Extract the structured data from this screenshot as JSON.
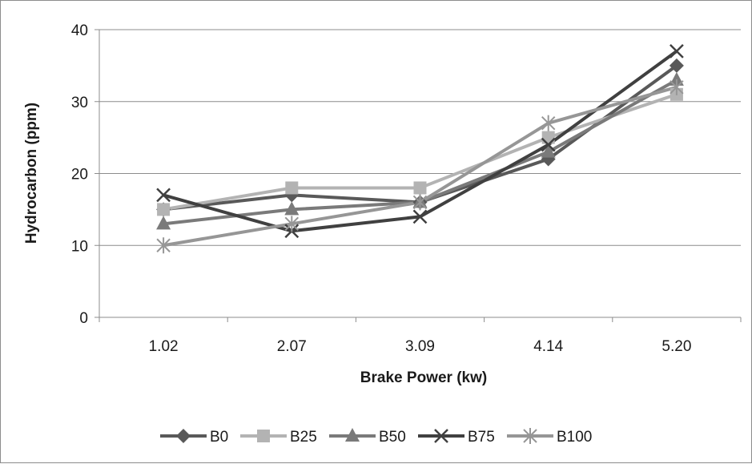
{
  "chart_data": {
    "type": "line",
    "title": "",
    "xlabel": "Brake Power (kw)",
    "ylabel": "Hydrocarbon (ppm)",
    "categories": [
      "1.02",
      "2.07",
      "3.09",
      "4.14",
      "5.20"
    ],
    "ylim": [
      0,
      40
    ],
    "yticks": [
      0,
      10,
      20,
      30,
      40
    ],
    "grid": "horizontal",
    "legend_position": "bottom",
    "series": [
      {
        "name": "B0",
        "marker": "diamond",
        "color": "#595959",
        "values": [
          15,
          17,
          16,
          22,
          35
        ]
      },
      {
        "name": "B25",
        "marker": "square",
        "color": "#b3b3b3",
        "values": [
          15,
          18,
          18,
          25,
          31
        ]
      },
      {
        "name": "B50",
        "marker": "triangle",
        "color": "#7a7a7a",
        "values": [
          13,
          15,
          16,
          23,
          33
        ]
      },
      {
        "name": "B75",
        "marker": "x",
        "color": "#404040",
        "values": [
          17,
          12,
          14,
          24,
          37
        ]
      },
      {
        "name": "B100",
        "marker": "asterisk",
        "color": "#969696",
        "values": [
          10,
          13,
          16,
          27,
          32
        ]
      }
    ]
  }
}
